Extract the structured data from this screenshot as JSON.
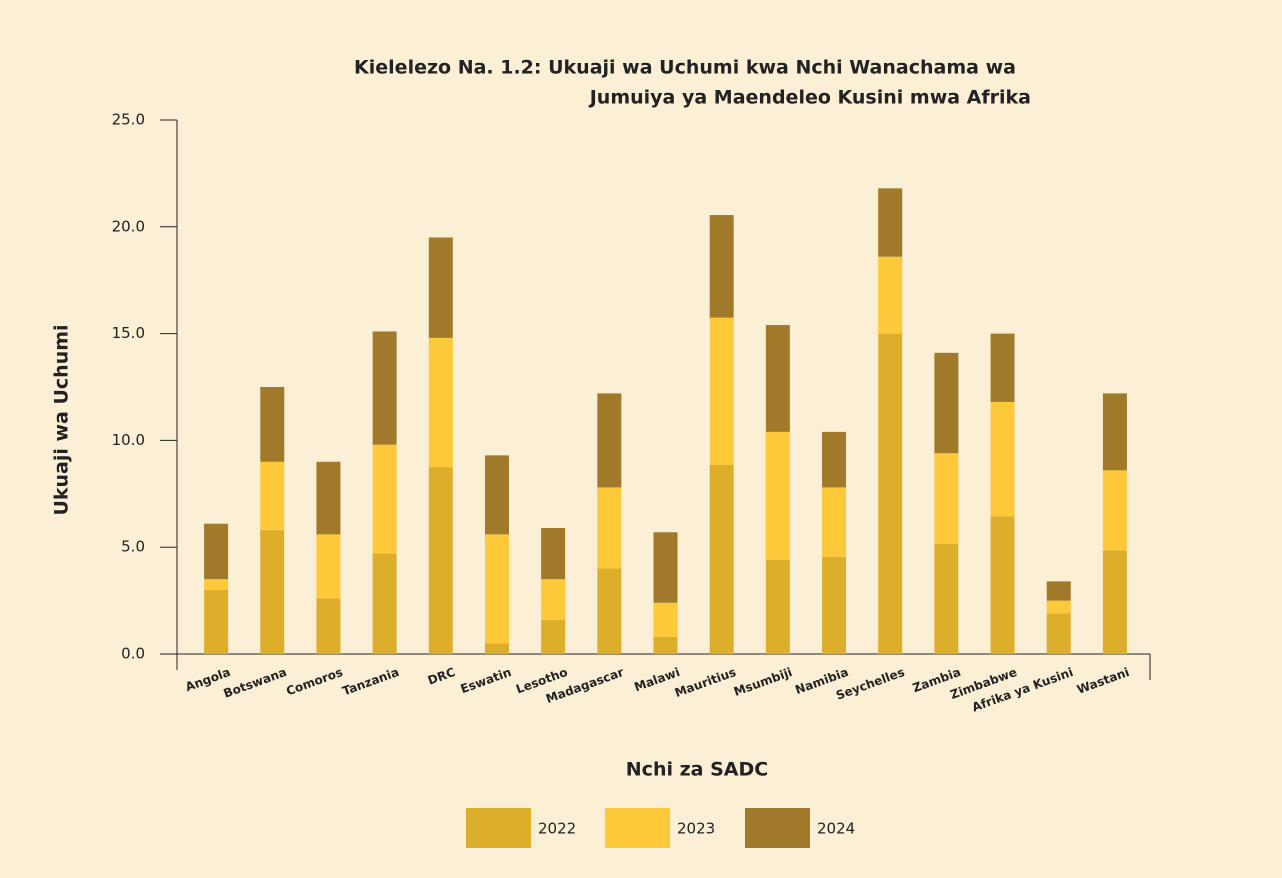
{
  "chart_data": {
    "type": "stacked_bar",
    "title": [
      "Kielelezo Na. 1.2: Ukuaji wa Uchumi kwa Nchi Wanachama wa",
      "Jumuiya ya Maendeleo Kusini mwa Afrika"
    ],
    "x_label": "Nchi za SADC",
    "y_label": "Ukuaji wa Uchumi",
    "categories": [
      "Angola",
      "Botswana",
      "Comoros",
      "Tanzania",
      "DRC",
      "Eswatin",
      "Lesotho",
      "Madagascar",
      "Malawi",
      "Mauritius",
      "Msumbiji",
      "Namibia",
      "Seychelles",
      "Zambia",
      "Zimbabwe",
      "Afrika ya Kusini",
      "Wastani"
    ],
    "series": [
      {
        "name": "2022",
        "color": "#dcae2c",
        "values": [
          3.0,
          5.8,
          2.6,
          4.7,
          8.75,
          0.5,
          1.6,
          4.0,
          0.8,
          8.85,
          4.4,
          4.55,
          15.0,
          5.15,
          6.45,
          1.9,
          4.85
        ]
      },
      {
        "name": "2023",
        "color": "#fdc93b",
        "values": [
          0.5,
          3.2,
          3.0,
          5.1,
          6.05,
          5.1,
          1.9,
          3.8,
          1.6,
          6.9,
          6.0,
          3.25,
          3.6,
          4.25,
          5.35,
          0.6,
          3.75
        ]
      },
      {
        "name": "2024",
        "color": "#a0792b",
        "values": [
          2.6,
          3.5,
          3.4,
          5.3,
          4.7,
          3.7,
          2.4,
          4.4,
          3.3,
          4.8,
          5.0,
          2.6,
          3.2,
          4.7,
          3.2,
          0.9,
          3.6
        ]
      }
    ],
    "ylim": [
      0,
      25
    ],
    "yticks": [
      {
        "value": 0,
        "label": "0.0"
      },
      {
        "value": 5,
        "label": "5.0"
      },
      {
        "value": 10,
        "label": "10.0"
      },
      {
        "value": 15,
        "label": "15.0"
      },
      {
        "value": 20,
        "label": "20.0"
      },
      {
        "value": 25,
        "label": "25.0"
      }
    ],
    "legend": "bottom"
  }
}
